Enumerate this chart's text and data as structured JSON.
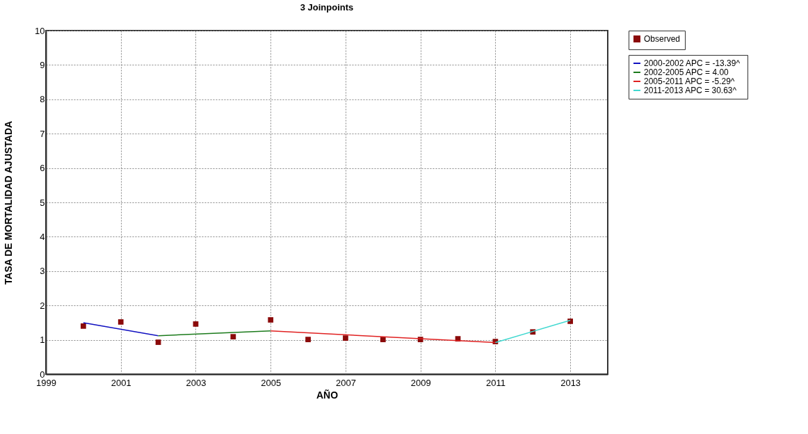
{
  "chart_data": {
    "type": "line",
    "title": "3 Joinpoints",
    "xlabel": "AÑO",
    "ylabel": "TASA DE MORTALIDAD AJUSTADA",
    "xlim": [
      1999,
      2014
    ],
    "xticks": [
      1999,
      2001,
      2003,
      2005,
      2007,
      2009,
      2011,
      2013
    ],
    "ylim": [
      0,
      10
    ],
    "yticks": [
      0,
      1,
      2,
      3,
      4,
      5,
      6,
      7,
      8,
      9,
      10
    ],
    "grid": true,
    "legend": "top right",
    "series": [
      {
        "name": "Observed",
        "type": "scatter",
        "marker": "square",
        "color": "#8b0a0a",
        "x": [
          2000,
          2001,
          2002,
          2003,
          2004,
          2005,
          2006,
          2007,
          2008,
          2009,
          2010,
          2011,
          2012,
          2013
        ],
        "values": [
          1.4,
          1.52,
          0.93,
          1.46,
          1.09,
          1.58,
          1.01,
          1.05,
          1.01,
          1.01,
          1.03,
          0.95,
          1.23,
          1.54
        ]
      },
      {
        "name": "2000-2002 APC  = -13.39^",
        "color": "#1010c0",
        "x": [
          2000,
          2002
        ],
        "values": [
          1.5,
          1.12
        ]
      },
      {
        "name": "2002-2005 APC  =   4.00",
        "color": "#1a7a1a",
        "x": [
          2002,
          2005
        ],
        "values": [
          1.12,
          1.26
        ]
      },
      {
        "name": "2005-2011 APC  =  -5.29^",
        "color": "#e02020",
        "x": [
          2005,
          2011
        ],
        "values": [
          1.26,
          0.92
        ]
      },
      {
        "name": "2011-2013 APC  =  30.63^",
        "color": "#40d8d0",
        "x": [
          2011,
          2013
        ],
        "values": [
          0.92,
          1.57
        ]
      }
    ]
  }
}
